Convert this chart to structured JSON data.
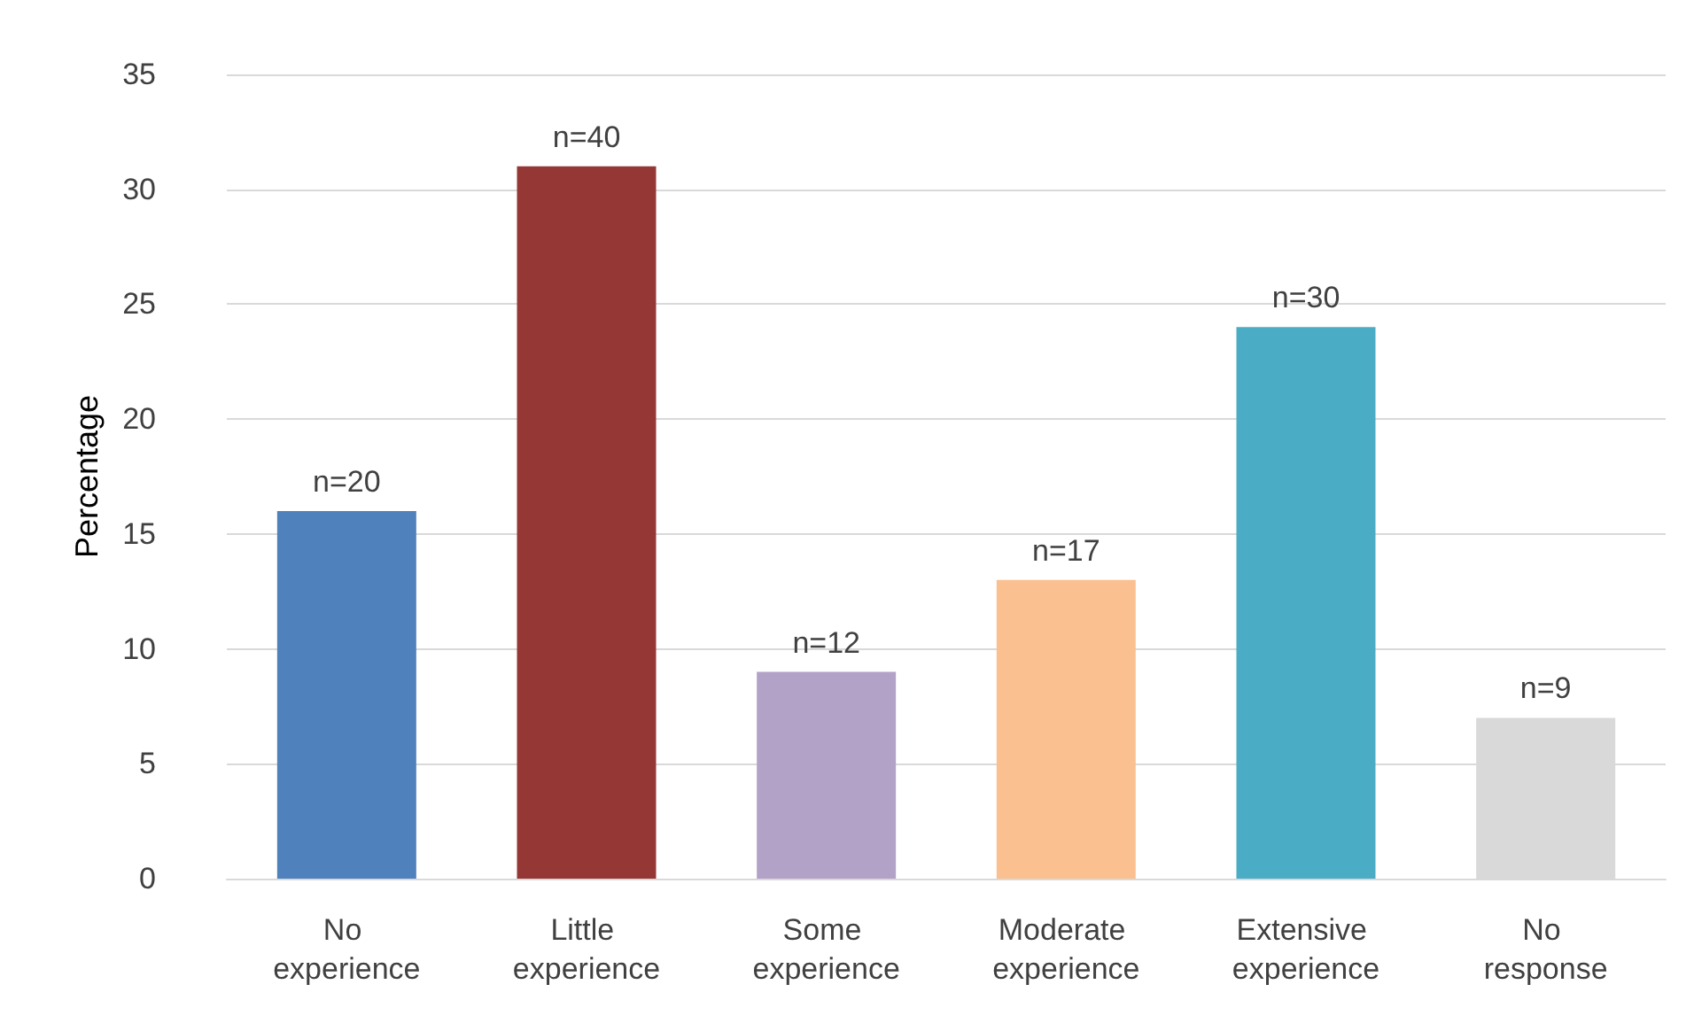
{
  "chart_data": {
    "type": "bar",
    "ylabel": "Percentage",
    "categories": [
      "No experience",
      "Little experience",
      "Some experience",
      "Moderate experience",
      "Extensive experience",
      "No response"
    ],
    "values": [
      16,
      31,
      9,
      13,
      24,
      7
    ],
    "colors": [
      "#4f81bd",
      "#953735",
      "#b3a2c7",
      "#fac090",
      "#4bacc6",
      "#d9d9d9"
    ],
    "annotations": [
      {
        "text": "n=20",
        "x": "No experience",
        "y": 16
      },
      {
        "text": "n=40",
        "x": "Little experience",
        "y": 31
      },
      {
        "text": "n=12",
        "x": "Some experience",
        "y": 9
      },
      {
        "text": "n=17",
        "x": "Moderate experience",
        "y": 13
      },
      {
        "text": "n=30",
        "x": "Extensive experience",
        "y": 24
      },
      {
        "text": "n=9",
        "x": "No response",
        "y": 7
      }
    ],
    "ylim": [
      0,
      35
    ],
    "yticks": [
      0,
      5,
      10,
      15,
      20,
      25,
      30,
      35
    ],
    "grid": "y"
  }
}
